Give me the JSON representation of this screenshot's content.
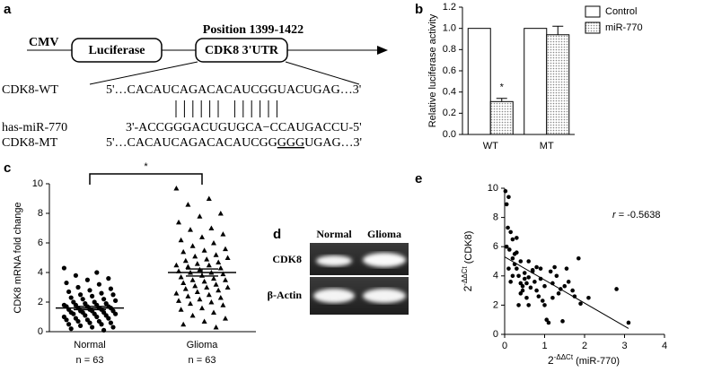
{
  "diagram": {
    "panel_label": "a",
    "promoter": "CMV",
    "gene_box": "Luciferase",
    "utr_box": "CDK8 3'UTR",
    "position": "Position 1399-1422",
    "rows": [
      {
        "name": "CDK8-WT",
        "sequence": [
          "5'…CACAUCAGACACAUCGGUACUGAG…3'"
        ]
      },
      {
        "name": "has-miR-770",
        "sequence": [
          "3'-ACCGGGACUGUGCA−CCAUGACCU-5'"
        ]
      },
      {
        "name": "CDK8-MT",
        "sequence": [
          "5'…CACAUCAGACACAUCGG",
          "GGG",
          "UGAG…3'"
        ]
      }
    ]
  },
  "gel": {
    "panel_label": "d",
    "lanes": [
      "Normal",
      "Glioma"
    ],
    "rows": [
      "CDK8",
      "β-Actin"
    ]
  },
  "chart_data": [
    {
      "type": "bar",
      "panel_label": "b",
      "ylabel": "Relative luciferase activity",
      "categories": [
        "WT",
        "MT"
      ],
      "series": [
        {
          "name": "Control",
          "color": "#ffffff",
          "values": [
            1.0,
            1.0
          ]
        },
        {
          "name": "miR-770",
          "color": "#888888",
          "pattern": "dots",
          "values": [
            0.31,
            0.94
          ],
          "errors": [
            0.03,
            0.08
          ]
        }
      ],
      "annotation": "*",
      "ylim": [
        0,
        1.2
      ],
      "yticks": [
        {
          "value": 0,
          "label": "0.0"
        },
        {
          "value": 0.2,
          "label": "0.2"
        },
        {
          "value": 0.4,
          "label": "0.4"
        },
        {
          "value": 0.6,
          "label": "0.6"
        },
        {
          "value": 0.8,
          "label": "0.8"
        },
        {
          "value": 1,
          "label": "1.0"
        },
        {
          "value": 1.2,
          "label": "1.2"
        }
      ],
      "legend": "right"
    },
    {
      "type": "strip",
      "panel_label": "c",
      "ylabel": "CDK8 mRNA fold change",
      "categories": [
        "Normal",
        "Glioma"
      ],
      "counts": [
        "n = 63",
        "n = 63"
      ],
      "significance": "*",
      "series": [
        {
          "name": "Normal",
          "marker": "circle",
          "color": "#000000",
          "mean": 1.6,
          "sem": 0.11,
          "values": [
            4.3,
            4.0,
            3.8,
            3.6,
            3.5,
            3.3,
            3.2,
            3.0,
            2.9,
            2.8,
            2.7,
            2.6,
            2.5,
            2.5,
            2.4,
            2.3,
            2.2,
            2.2,
            2.1,
            2.0,
            2.0,
            1.9,
            1.9,
            1.8,
            1.8,
            1.8,
            1.7,
            1.7,
            1.7,
            1.6,
            1.6,
            1.6,
            1.5,
            1.5,
            1.5,
            1.4,
            1.4,
            1.4,
            1.3,
            1.3,
            1.3,
            1.2,
            1.2,
            1.2,
            1.1,
            1.1,
            1.0,
            1.0,
            0.9,
            0.9,
            0.8,
            0.8,
            0.7,
            0.7,
            0.6,
            0.6,
            0.5,
            0.5,
            0.4,
            0.3,
            0.3,
            0.2,
            0.1
          ]
        },
        {
          "name": "Glioma",
          "marker": "triangle",
          "color": "#000000",
          "mean": 4.0,
          "sem": 0.24,
          "values": [
            9.7,
            9.0,
            8.6,
            8.0,
            7.8,
            7.4,
            7.0,
            6.9,
            6.6,
            6.4,
            6.2,
            6.0,
            5.8,
            5.6,
            5.5,
            5.4,
            5.2,
            5.1,
            5.0,
            4.9,
            4.8,
            4.7,
            4.6,
            4.5,
            4.5,
            4.4,
            4.3,
            4.2,
            4.1,
            4.0,
            4.0,
            3.9,
            3.8,
            3.7,
            3.6,
            3.5,
            3.5,
            3.4,
            3.3,
            3.2,
            3.1,
            3.0,
            3.0,
            2.9,
            2.8,
            2.7,
            2.6,
            2.5,
            2.4,
            2.3,
            2.2,
            2.1,
            2.0,
            1.9,
            1.8,
            1.6,
            1.5,
            1.3,
            1.1,
            0.9,
            0.7,
            0.5,
            0.3
          ]
        }
      ],
      "ylim": [
        0,
        10
      ],
      "yticks": [
        0,
        2,
        4,
        6,
        8,
        10
      ]
    },
    {
      "type": "scatter",
      "panel_label": "e",
      "xlabel": [
        "2",
        "-ΔΔCt",
        " (miR-770)"
      ],
      "ylabel": [
        "2",
        "-ΔΔCt",
        "   (CDK8)"
      ],
      "annotation": [
        "r",
        " = -0.5638"
      ],
      "x": [
        0.02,
        0.05,
        0.1,
        0.08,
        0.15,
        0.2,
        0.05,
        0.12,
        0.2,
        0.25,
        0.3,
        0.3,
        0.35,
        0.4,
        0.4,
        0.45,
        0.5,
        0.5,
        0.55,
        0.6,
        0.6,
        0.65,
        0.7,
        0.75,
        0.8,
        0.85,
        0.9,
        0.95,
        1.0,
        1.05,
        1.1,
        1.15,
        1.2,
        1.25,
        1.3,
        1.35,
        1.4,
        1.45,
        1.5,
        1.55,
        1.6,
        1.7,
        1.75,
        1.85,
        1.9,
        2.1,
        2.8,
        3.1,
        0.1,
        0.2,
        0.4,
        0.3,
        0.6,
        0.7,
        0.25,
        0.9,
        1.0,
        0.15,
        0.55,
        0.45,
        0.35,
        1.2,
        0.8
      ],
      "values": [
        9.8,
        8.9,
        9.4,
        7.3,
        7.0,
        6.5,
        6.0,
        5.8,
        5.2,
        4.8,
        5.6,
        4.5,
        4.0,
        5.0,
        3.5,
        3.0,
        4.2,
        3.8,
        2.5,
        3.9,
        2.0,
        3.2,
        4.4,
        3.6,
        3.0,
        2.6,
        3.8,
        2.3,
        2.0,
        1.0,
        0.8,
        4.3,
        3.5,
        4.6,
        4.0,
        2.8,
        3.1,
        0.9,
        3.3,
        4.5,
        3.6,
        3.0,
        2.6,
        5.2,
        2.1,
        2.5,
        3.1,
        0.8,
        4.5,
        4.0,
        2.8,
        6.6,
        5.0,
        4.3,
        5.5,
        4.5,
        3.3,
        3.6,
        3.5,
        3.3,
        2.0,
        2.5,
        4.6
      ],
      "color": "#000000",
      "trend_line": {
        "x": [
          0,
          3.1
        ],
        "y": [
          5.3,
          0.4
        ]
      },
      "xlim": [
        0,
        4
      ],
      "xticks": [
        0,
        1,
        2,
        3,
        4
      ],
      "ylim": [
        0,
        10
      ],
      "yticks": [
        0,
        2,
        4,
        6,
        8,
        10
      ]
    }
  ]
}
